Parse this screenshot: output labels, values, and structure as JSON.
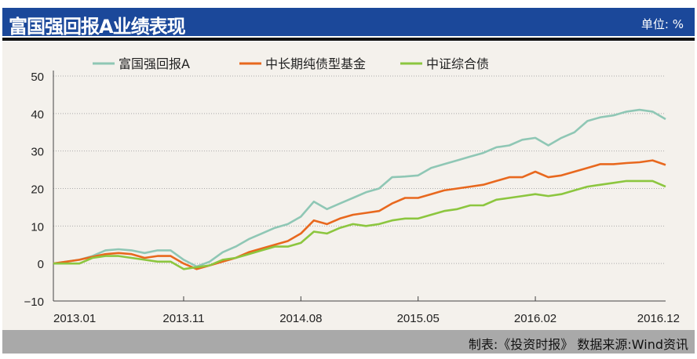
{
  "header": {
    "title": "富国强回报A业绩表现",
    "unit": "单位: %"
  },
  "footer": {
    "source": "制表:《投资时报》 数据来源:Wind资讯"
  },
  "chart_data": {
    "type": "line",
    "title": "富国强回报A业绩表现",
    "ylabel": "%",
    "ylim": [
      -10,
      50
    ],
    "yticks": [
      50,
      40,
      30,
      20,
      10,
      0,
      -10
    ],
    "xticks": [
      "2013.01",
      "2013.11",
      "2014.08",
      "2015.05",
      "2016.02",
      "2016.12"
    ],
    "grid": true,
    "legend": "top",
    "x": [
      "2013.01",
      "2013.02",
      "2013.03",
      "2013.04",
      "2013.05",
      "2013.06",
      "2013.07",
      "2013.08",
      "2013.09",
      "2013.10",
      "2013.11",
      "2013.12",
      "2014.01",
      "2014.02",
      "2014.03",
      "2014.04",
      "2014.05",
      "2014.06",
      "2014.07",
      "2014.08",
      "2014.09",
      "2014.10",
      "2014.11",
      "2014.12",
      "2015.01",
      "2015.02",
      "2015.03",
      "2015.04",
      "2015.05",
      "2015.06",
      "2015.07",
      "2015.08",
      "2015.09",
      "2015.10",
      "2015.11",
      "2015.12",
      "2016.01",
      "2016.02",
      "2016.03",
      "2016.04",
      "2016.05",
      "2016.06",
      "2016.07",
      "2016.08",
      "2016.09",
      "2016.10",
      "2016.11",
      "2016.12"
    ],
    "series": [
      {
        "name": "富国强回报A",
        "color": "#8fc7b5",
        "values": [
          0,
          0.5,
          1,
          2,
          3.5,
          3.8,
          3.5,
          2.8,
          3.5,
          3.5,
          1,
          -0.8,
          0.5,
          3,
          4.5,
          6.5,
          8,
          9.5,
          10.5,
          12.5,
          16.5,
          14.5,
          16,
          17.5,
          19,
          20,
          23,
          23.2,
          23.5,
          25.5,
          26.5,
          27.5,
          28.5,
          29.5,
          31,
          31.5,
          33,
          33.5,
          31.5,
          33.5,
          35,
          38,
          39,
          39.5,
          40.5,
          41,
          40.5,
          38.5
        ]
      },
      {
        "name": "中长期纯债型基金",
        "color": "#e8681e",
        "values": [
          0,
          0.5,
          1,
          1.8,
          2.5,
          2.8,
          2.5,
          1.5,
          2,
          2,
          0,
          -1.5,
          -0.5,
          0.5,
          1.5,
          3,
          4,
          5,
          6,
          8,
          11.5,
          10.5,
          12,
          13,
          13.5,
          14,
          16,
          17.5,
          17.5,
          18.5,
          19.5,
          20,
          20.5,
          21,
          22,
          23,
          23,
          24.5,
          23,
          23.5,
          24.5,
          25.5,
          26.5,
          26.5,
          26.8,
          27,
          27.5,
          26.3
        ]
      },
      {
        "name": "中证综合债",
        "color": "#8cc63f",
        "values": [
          0,
          0,
          0,
          1.5,
          2,
          2,
          1.5,
          1,
          0.5,
          0.5,
          -1.5,
          -1,
          -0.5,
          1,
          1.5,
          2.5,
          3.5,
          4.5,
          4.5,
          5.5,
          8.5,
          8,
          9.5,
          10.5,
          10,
          10.5,
          11.5,
          12,
          12,
          13,
          14,
          14.5,
          15.5,
          15.5,
          17,
          17.5,
          18,
          18.5,
          18,
          18.5,
          19.5,
          20.5,
          21,
          21.5,
          22,
          22,
          22,
          20.5
        ]
      }
    ]
  }
}
